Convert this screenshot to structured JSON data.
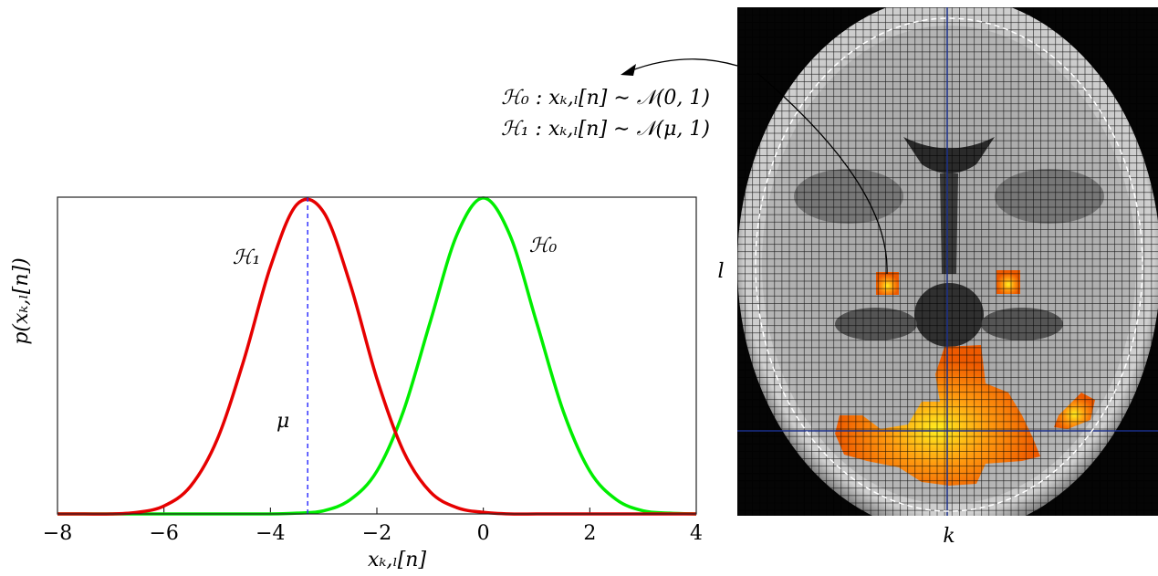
{
  "chart_data": {
    "type": "line",
    "xlabel": "xₖ,ₗ[n]",
    "ylabel": "p(xₖ,ₗ[n])",
    "x": [
      -8,
      -7.5,
      -7,
      -6.5,
      -6,
      -5.5,
      -5,
      -4.5,
      -4,
      -3.5,
      -3,
      -2.5,
      -2,
      -1.5,
      -1,
      -0.5,
      0,
      0.5,
      1,
      1.5,
      2,
      2.5,
      3,
      3.5,
      4
    ],
    "series": [
      {
        "name": "ℋ₀",
        "color": "#00ee00",
        "values": [
          0,
          0,
          0,
          0,
          0,
          0,
          0,
          0,
          0,
          0.001,
          0.004,
          0.018,
          0.054,
          0.13,
          0.242,
          0.352,
          0.399,
          0.352,
          0.242,
          0.13,
          0.054,
          0.018,
          0.004,
          0.001,
          0
        ]
      },
      {
        "name": "ℋ₁",
        "color": "#e60000",
        "values": [
          0,
          0,
          0,
          0.002,
          0.01,
          0.035,
          0.094,
          0.194,
          0.312,
          0.391,
          0.381,
          0.29,
          0.171,
          0.079,
          0.028,
          0.008,
          0.002,
          0,
          0,
          0,
          0,
          0,
          0,
          0,
          0
        ]
      }
    ],
    "mu_line": {
      "x": -3.3,
      "label": "μ",
      "color": "#3333ff"
    },
    "xlim": [
      -8,
      4
    ],
    "ylim": [
      0,
      0.4
    ],
    "xticks": [
      {
        "value": -8,
        "label": "−8"
      },
      {
        "value": -6,
        "label": "−6"
      },
      {
        "value": -4,
        "label": "−4"
      },
      {
        "value": -2,
        "label": "−2"
      },
      0,
      2,
      4
    ],
    "grid": false
  },
  "figure_image": {
    "hypotheses": [
      "ℋ₀ : xₖ,ₗ[n] ∼ 𝒩(0, 1)",
      "ℋ₁ : xₖ,ₗ[n] ∼ 𝒩(μ, 1)"
    ],
    "k_label": "k",
    "l_label": "l"
  }
}
